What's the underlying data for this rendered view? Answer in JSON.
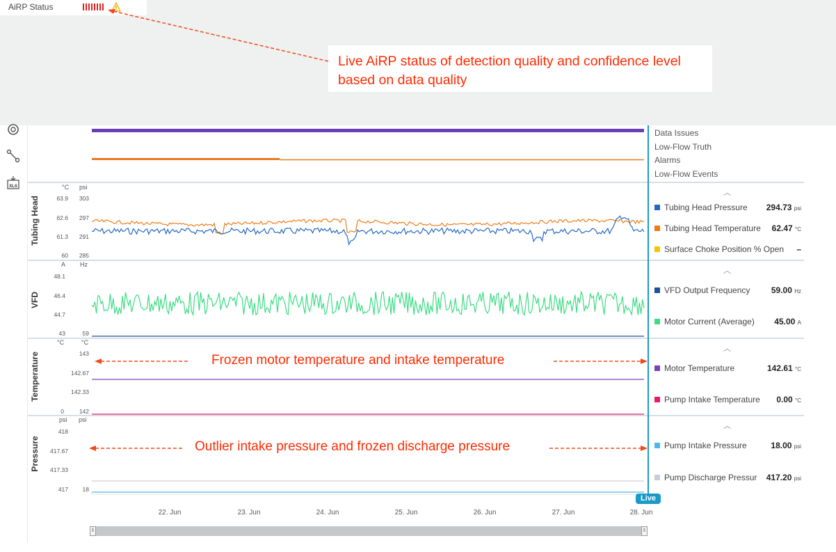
{
  "status": {
    "label": "AiRP Status",
    "warning_icon": "warning-icon"
  },
  "callout": {
    "text": "Live AiRP status of detection quality and confidence level based on data quality"
  },
  "events_panel": {
    "legend": [
      "Data Issues",
      "Low-Flow Truth",
      "Alarms",
      "Low-Flow Events"
    ]
  },
  "panels": {
    "tubing": {
      "label": "Tubing Head",
      "units": [
        "°C",
        "psi"
      ],
      "ticks_left": [
        "63.9",
        "62.6",
        "61.3",
        "60"
      ],
      "ticks_right": [
        "303",
        "297",
        "291",
        "285"
      ],
      "legend": [
        {
          "name": "Tubing Head Pressure",
          "value": "294.73",
          "unit": "psi",
          "color": "#2368c4"
        },
        {
          "name": "Tubing Head Temperature",
          "value": "62.47",
          "unit": "°C",
          "color": "#ee7c1a"
        },
        {
          "name": "Surface Choke Position % Open",
          "value": "–",
          "unit": "",
          "color": "#f5c400"
        }
      ]
    },
    "vfd": {
      "label": "VFD",
      "units": [
        "A",
        "Hz"
      ],
      "ticks_left": [
        "48.1",
        "46.4",
        "44.7",
        "43"
      ],
      "ticks_right": [
        "59"
      ],
      "legend": [
        {
          "name": "VFD Output Frequency",
          "value": "59.00",
          "unit": "Hz",
          "color": "#1c4f9c"
        },
        {
          "name": "Motor Current (Average)",
          "value": "45.00",
          "unit": "A",
          "color": "#3ddc84"
        }
      ]
    },
    "temperature": {
      "label": "Temperature",
      "units": [
        "°C",
        "°C"
      ],
      "ticks_left": [
        "0"
      ],
      "ticks_right": [
        "143",
        "142.67",
        "142.33",
        "142"
      ],
      "legend": [
        {
          "name": "Motor Temperature",
          "value": "142.61",
          "unit": "°C",
          "color": "#7b3fb8"
        },
        {
          "name": "Pump Intake Temperature",
          "value": "0.00",
          "unit": "°C",
          "color": "#e8186a"
        }
      ],
      "annotation": "Frozen motor temperature and intake temperature"
    },
    "pressure": {
      "label": "Pressure",
      "units": [
        "psi",
        "psi"
      ],
      "ticks_left": [
        "418",
        "417.67",
        "417.33",
        "417"
      ],
      "ticks_right": [
        "18"
      ],
      "legend": [
        {
          "name": "Pump Intake Pressure",
          "value": "18.00",
          "unit": "psi",
          "color": "#4fb8e8"
        },
        {
          "name": "Pump Discharge Pressur",
          "value": "417.20",
          "unit": "psi",
          "color": "#c9cdd6"
        }
      ],
      "annotation": "Outlier intake pressure and frozen discharge pressure"
    }
  },
  "x_axis": {
    "ticks": [
      "22. Jun",
      "23. Jun",
      "24. Jun",
      "25. Jun",
      "26. Jun",
      "27. Jun",
      "28. Jun"
    ]
  },
  "live_label": "Live",
  "colors": {
    "annotation_red": "#ff2a00",
    "divider_blue": "#1a9ac8",
    "data_issues": "#6a3fb5",
    "alarms": "#e87a1c"
  },
  "sidebar_icons": [
    "gauge-icon",
    "connection-icon",
    "xls-export-icon"
  ]
}
